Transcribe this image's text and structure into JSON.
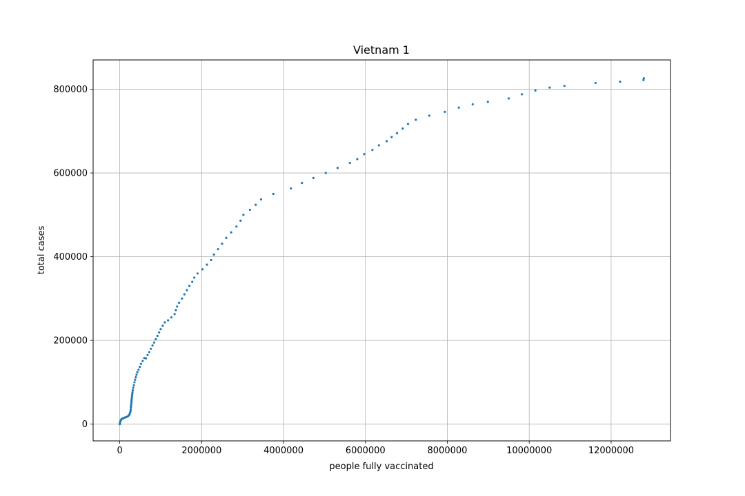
{
  "chart_data": {
    "type": "scatter",
    "title": "Vietnam 1",
    "xlabel": "people fully vaccinated",
    "ylabel": "total cases",
    "xlim": [
      -650000,
      13450000
    ],
    "ylim": [
      -40000,
      870000
    ],
    "xticks": [
      0,
      2000000,
      4000000,
      6000000,
      8000000,
      10000000,
      12000000
    ],
    "xtick_labels": [
      "0",
      "2000000",
      "4000000",
      "6000000",
      "8000000",
      "10000000",
      "12000000"
    ],
    "yticks": [
      0,
      200000,
      400000,
      600000,
      800000
    ],
    "ytick_labels": [
      "0",
      "200000",
      "400000",
      "600000",
      "800000"
    ],
    "grid": true,
    "marker_color": "#1f77b4",
    "series": [
      {
        "x": [
          0,
          5000,
          12000,
          20000,
          30000,
          45000,
          60000,
          80000,
          100000,
          130000,
          160000,
          190000,
          210000,
          230000,
          245000,
          255000,
          262000,
          268000,
          272000,
          276000,
          280000,
          284000,
          288000,
          292000,
          296000,
          300000,
          305000,
          312000,
          320000,
          330000,
          345000,
          360000,
          375000,
          392000,
          410000,
          430000,
          460000,
          490000,
          520000,
          560000,
          600000,
          640000,
          680000,
          720000,
          760000,
          800000,
          840000,
          880000,
          920000,
          960000,
          1000000,
          1050000,
          1100000,
          1180000,
          1260000,
          1340000,
          1370000,
          1400000,
          1450000,
          1520000,
          1580000,
          1640000,
          1700000,
          1770000,
          1820000,
          1900000,
          2020000,
          2130000,
          2230000,
          2300000,
          2400000,
          2500000,
          2600000,
          2720000,
          2850000,
          2950000,
          3020000,
          3180000,
          3320000,
          3450000,
          3750000,
          4180000,
          4450000,
          4730000,
          5030000,
          5320000,
          5620000,
          5800000,
          5970000,
          6170000,
          6330000,
          6520000,
          6640000,
          6770000,
          6910000,
          7040000,
          7230000,
          7560000,
          7940000,
          8280000,
          8620000,
          8990000,
          9500000,
          9820000,
          10150000,
          10500000,
          10860000,
          11620000,
          12220000,
          12790000,
          12800000
        ],
        "y": [
          0,
          3000,
          6000,
          8000,
          10000,
          12000,
          13000,
          14000,
          15000,
          16000,
          17000,
          18000,
          20000,
          22000,
          25000,
          28000,
          31000,
          35000,
          40000,
          44000,
          48000,
          52000,
          56000,
          60000,
          64000,
          68000,
          72000,
          76000,
          81000,
          87000,
          93000,
          100000,
          106000,
          112000,
          118000,
          124000,
          130000,
          137000,
          144000,
          151000,
          158000,
          157000,
          165000,
          172000,
          180000,
          188000,
          195000,
          203000,
          211000,
          219000,
          227000,
          235000,
          243000,
          248000,
          255000,
          263000,
          272000,
          281000,
          290000,
          300000,
          310000,
          320000,
          330000,
          340000,
          350000,
          360000,
          370000,
          381000,
          392000,
          405000,
          418000,
          431000,
          445000,
          458000,
          472000,
          486000,
          500000,
          512000,
          524000,
          537000,
          550000,
          563000,
          576000,
          588000,
          600000,
          612000,
          624000,
          633000,
          645000,
          655000,
          666000,
          676000,
          686000,
          695000,
          706000,
          717000,
          727000,
          737000,
          746000,
          756000,
          764000,
          770000,
          778000,
          788000,
          797000,
          804000,
          808000,
          815000,
          818000,
          822000,
          826000
        ]
      }
    ]
  }
}
